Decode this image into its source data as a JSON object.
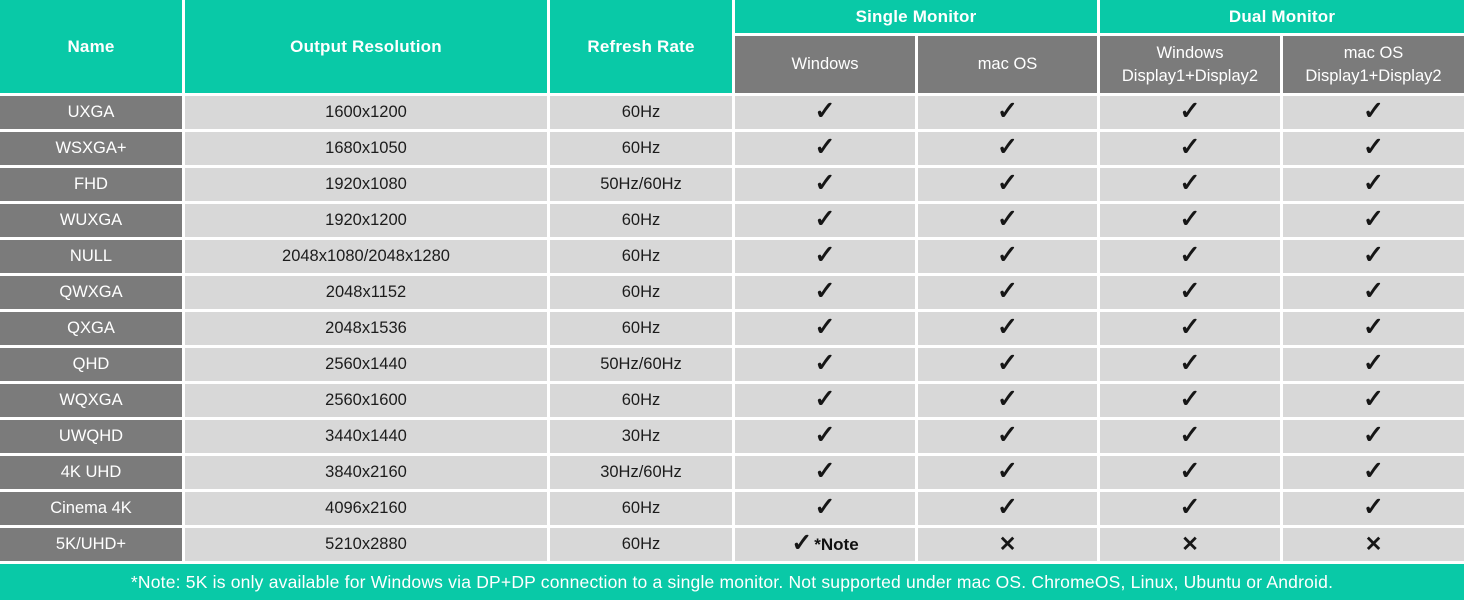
{
  "colors": {
    "teal": "#09C9A7",
    "header_gray": "#7B7B7B",
    "cell_gray": "#D8D8D8",
    "text_dark": "#1C1C1C",
    "text_white": "#FFFFFF"
  },
  "glyphs": {
    "check": "✓",
    "cross": "✕"
  },
  "header": {
    "name": "Name",
    "output_resolution": "Output Resolution",
    "refresh_rate": "Refresh Rate",
    "single_monitor": "Single Monitor",
    "dual_monitor": "Dual Monitor",
    "sub": [
      "Windows",
      "mac OS",
      "Windows Display1+Display2",
      "mac OS Display1+Display2"
    ]
  },
  "rows": [
    {
      "name": "UXGA",
      "resolution": "1600x1200",
      "refresh": "60Hz",
      "support": [
        "check",
        "check",
        "check",
        "check"
      ]
    },
    {
      "name": "WSXGA+",
      "resolution": "1680x1050",
      "refresh": "60Hz",
      "support": [
        "check",
        "check",
        "check",
        "check"
      ]
    },
    {
      "name": "FHD",
      "resolution": "1920x1080",
      "refresh": "50Hz/60Hz",
      "support": [
        "check",
        "check",
        "check",
        "check"
      ]
    },
    {
      "name": "WUXGA",
      "resolution": "1920x1200",
      "refresh": "60Hz",
      "support": [
        "check",
        "check",
        "check",
        "check"
      ]
    },
    {
      "name": "NULL",
      "resolution": "2048x1080/2048x1280",
      "refresh": "60Hz",
      "support": [
        "check",
        "check",
        "check",
        "check"
      ]
    },
    {
      "name": "QWXGA",
      "resolution": "2048x1152",
      "refresh": "60Hz",
      "support": [
        "check",
        "check",
        "check",
        "check"
      ]
    },
    {
      "name": "QXGA",
      "resolution": "2048x1536",
      "refresh": "60Hz",
      "support": [
        "check",
        "check",
        "check",
        "check"
      ]
    },
    {
      "name": "QHD",
      "resolution": "2560x1440",
      "refresh": "50Hz/60Hz",
      "support": [
        "check",
        "check",
        "check",
        "check"
      ]
    },
    {
      "name": "WQXGA",
      "resolution": "2560x1600",
      "refresh": "60Hz",
      "support": [
        "check",
        "check",
        "check",
        "check"
      ]
    },
    {
      "name": "UWQHD",
      "resolution": "3440x1440",
      "refresh": "30Hz",
      "support": [
        "check",
        "check",
        "check",
        "check"
      ]
    },
    {
      "name": "4K UHD",
      "resolution": "3840x2160",
      "refresh": "30Hz/60Hz",
      "support": [
        "check",
        "check",
        "check",
        "check"
      ]
    },
    {
      "name": "Cinema 4K",
      "resolution": "4096x2160",
      "refresh": "60Hz",
      "support": [
        "check",
        "check",
        "check",
        "check"
      ]
    },
    {
      "name": "5K/UHD+",
      "resolution": "5210x2880",
      "refresh": "60Hz",
      "support": [
        "check+note",
        "cross",
        "cross",
        "cross"
      ],
      "note_suffix": "*Note"
    }
  ],
  "footer": {
    "note": "*Note: 5K is only available for Windows via DP+DP connection to a single monitor. Not supported under mac OS. ChromeOS, Linux, Ubuntu or Android."
  },
  "chart_data": {
    "type": "table",
    "title": "Output resolution support matrix",
    "columns": [
      "Name",
      "Output Resolution",
      "Refresh Rate",
      "Single Monitor - Windows",
      "Single Monitor - mac OS",
      "Dual Monitor - Windows Display1+Display2",
      "Dual Monitor - mac OS Display1+Display2"
    ],
    "rows": [
      [
        "UXGA",
        "1600x1200",
        "60Hz",
        "yes",
        "yes",
        "yes",
        "yes"
      ],
      [
        "WSXGA+",
        "1680x1050",
        "60Hz",
        "yes",
        "yes",
        "yes",
        "yes"
      ],
      [
        "FHD",
        "1920x1080",
        "50Hz/60Hz",
        "yes",
        "yes",
        "yes",
        "yes"
      ],
      [
        "WUXGA",
        "1920x1200",
        "60Hz",
        "yes",
        "yes",
        "yes",
        "yes"
      ],
      [
        "NULL",
        "2048x1080/2048x1280",
        "60Hz",
        "yes",
        "yes",
        "yes",
        "yes"
      ],
      [
        "QWXGA",
        "2048x1152",
        "60Hz",
        "yes",
        "yes",
        "yes",
        "yes"
      ],
      [
        "QXGA",
        "2048x1536",
        "60Hz",
        "yes",
        "yes",
        "yes",
        "yes"
      ],
      [
        "QHD",
        "2560x1440",
        "50Hz/60Hz",
        "yes",
        "yes",
        "yes",
        "yes"
      ],
      [
        "WQXGA",
        "2560x1600",
        "60Hz",
        "yes",
        "yes",
        "yes",
        "yes"
      ],
      [
        "UWQHD",
        "3440x1440",
        "30Hz",
        "yes",
        "yes",
        "yes",
        "yes"
      ],
      [
        "4K UHD",
        "3840x2160",
        "30Hz/60Hz",
        "yes",
        "yes",
        "yes",
        "yes"
      ],
      [
        "Cinema 4K",
        "4096x2160",
        "60Hz",
        "yes",
        "yes",
        "yes",
        "yes"
      ],
      [
        "5K/UHD+",
        "5210x2880",
        "60Hz",
        "yes (*Note)",
        "no",
        "no",
        "no"
      ]
    ],
    "footnote": "*Note: 5K is only available for Windows via DP+DP connection to a single monitor. Not supported under mac OS. ChromeOS, Linux, Ubuntu or Android."
  }
}
